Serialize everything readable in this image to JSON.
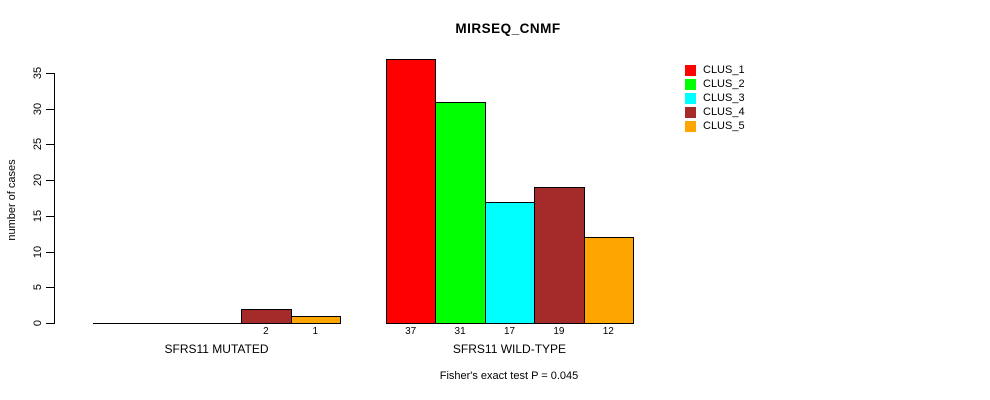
{
  "chart_data": {
    "type": "bar",
    "title": "MIRSEQ_CNMF",
    "ylabel": "number of cases",
    "xlabel": "",
    "categories": [
      "SFRS11 MUTATED",
      "SFRS11 WILD-TYPE"
    ],
    "series": [
      {
        "name": "CLUS_1",
        "color": "#FF0000",
        "values": [
          0,
          37
        ]
      },
      {
        "name": "CLUS_2",
        "color": "#00FF00",
        "values": [
          0,
          31
        ]
      },
      {
        "name": "CLUS_3",
        "color": "#00FFFF",
        "values": [
          0,
          17
        ]
      },
      {
        "name": "CLUS_4",
        "color": "#A52A2A",
        "values": [
          2,
          19
        ]
      },
      {
        "name": "CLUS_5",
        "color": "#FFA500",
        "values": [
          1,
          12
        ]
      }
    ],
    "bar_value_labels": [
      [
        "",
        "",
        "",
        "2",
        "1"
      ],
      [
        "37",
        "31",
        "17",
        "19",
        "12"
      ]
    ],
    "yticks": [
      0,
      5,
      10,
      15,
      20,
      25,
      30,
      35
    ],
    "ylim": [
      0,
      35
    ],
    "grid": false,
    "legend_position": "top-right",
    "annotation": "Fisher's exact test P = 0.045",
    "background_color": "#FFFFFF",
    "axis_color": "#000000"
  }
}
